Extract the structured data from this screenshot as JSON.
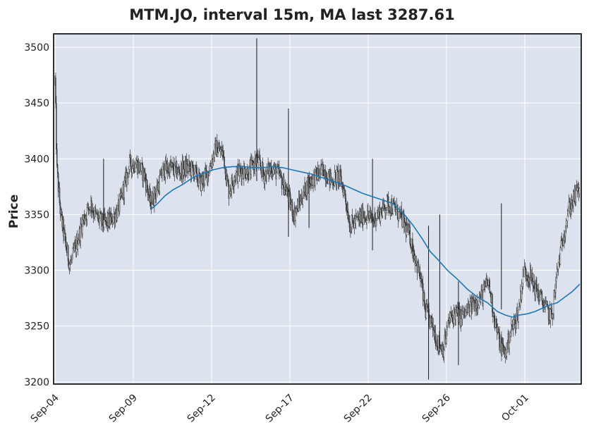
{
  "chart_data": {
    "type": "candlestick",
    "title": "MTM.JO, interval 15m, MA last 3287.61",
    "ylabel": "Price",
    "xlabel": "",
    "ylim": [
      3198,
      3512
    ],
    "y_ticks": [
      3200,
      3250,
      3300,
      3350,
      3400,
      3450,
      3500
    ],
    "x_ticks": [
      {
        "label": "Sep-04",
        "x": 0
      },
      {
        "label": "Sep-09",
        "x": 40
      },
      {
        "label": "Sep-12",
        "x": 80
      },
      {
        "label": "Sep-17",
        "x": 120
      },
      {
        "label": "Sep-22",
        "x": 160
      },
      {
        "label": "Sep-26",
        "x": 200
      },
      {
        "label": "Oct-01",
        "x": 240
      }
    ],
    "x_range": [
      0,
      268
    ],
    "grid": true,
    "colors": {
      "background": "#dce2ee",
      "grid": "#ffffff",
      "candle": "#1a1a1a",
      "ma_line": "#1f77b4"
    },
    "price_keypoints": [
      [
        0,
        3470
      ],
      [
        1,
        3390
      ],
      [
        3,
        3350
      ],
      [
        6,
        3320
      ],
      [
        8,
        3305
      ],
      [
        11,
        3320
      ],
      [
        15,
        3345
      ],
      [
        19,
        3360
      ],
      [
        22,
        3348
      ],
      [
        26,
        3342
      ],
      [
        30,
        3345
      ],
      [
        34,
        3355
      ],
      [
        37,
        3375
      ],
      [
        40,
        3395
      ],
      [
        44,
        3395
      ],
      [
        48,
        3385
      ],
      [
        51,
        3360
      ],
      [
        54,
        3370
      ],
      [
        58,
        3390
      ],
      [
        62,
        3392
      ],
      [
        66,
        3388
      ],
      [
        70,
        3392
      ],
      [
        74,
        3390
      ],
      [
        78,
        3378
      ],
      [
        82,
        3388
      ],
      [
        86,
        3410
      ],
      [
        90,
        3405
      ],
      [
        93,
        3370
      ],
      [
        96,
        3385
      ],
      [
        100,
        3390
      ],
      [
        104,
        3388
      ],
      [
        108,
        3400
      ],
      [
        112,
        3385
      ],
      [
        116,
        3392
      ],
      [
        120,
        3385
      ],
      [
        124,
        3370
      ],
      [
        128,
        3350
      ],
      [
        132,
        3365
      ],
      [
        136,
        3380
      ],
      [
        140,
        3385
      ],
      [
        144,
        3390
      ],
      [
        148,
        3380
      ],
      [
        152,
        3385
      ],
      [
        155,
        3370
      ],
      [
        158,
        3340
      ],
      [
        162,
        3345
      ],
      [
        166,
        3350
      ],
      [
        170,
        3345
      ],
      [
        174,
        3352
      ],
      [
        178,
        3360
      ],
      [
        182,
        3355
      ],
      [
        186,
        3345
      ],
      [
        190,
        3330
      ],
      [
        193,
        3310
      ],
      [
        196,
        3290
      ],
      [
        198,
        3265
      ],
      [
        202,
        3250
      ],
      [
        205,
        3235
      ],
      [
        208,
        3230
      ],
      [
        211,
        3255
      ],
      [
        214,
        3262
      ],
      [
        217,
        3258
      ],
      [
        220,
        3262
      ],
      [
        224,
        3270
      ],
      [
        228,
        3275
      ],
      [
        232,
        3290
      ],
      [
        235,
        3260
      ],
      [
        238,
        3235
      ],
      [
        241,
        3225
      ],
      [
        244,
        3245
      ],
      [
        248,
        3262
      ],
      [
        251,
        3300
      ],
      [
        254,
        3295
      ],
      [
        257,
        3285
      ],
      [
        260,
        3275
      ],
      [
        263,
        3265
      ],
      [
        266,
        3258
      ],
      [
        269,
        3300
      ],
      [
        272,
        3330
      ],
      [
        275,
        3355
      ],
      [
        278,
        3365
      ],
      [
        281,
        3375
      ]
    ],
    "ma_line": [
      [
        51,
        3357
      ],
      [
        52,
        3356
      ],
      [
        54,
        3360
      ],
      [
        57,
        3367
      ],
      [
        60,
        3372
      ],
      [
        64,
        3377
      ],
      [
        68,
        3383
      ],
      [
        72,
        3387
      ],
      [
        76,
        3390
      ],
      [
        80,
        3392
      ],
      [
        84,
        3393
      ],
      [
        88,
        3393
      ],
      [
        92,
        3392
      ],
      [
        96,
        3392
      ],
      [
        100,
        3393
      ],
      [
        104,
        3392
      ],
      [
        108,
        3390
      ],
      [
        112,
        3388
      ],
      [
        116,
        3386
      ],
      [
        120,
        3383
      ],
      [
        124,
        3380
      ],
      [
        128,
        3377
      ],
      [
        132,
        3373
      ],
      [
        136,
        3369
      ],
      [
        140,
        3366
      ],
      [
        144,
        3363
      ],
      [
        148,
        3360
      ],
      [
        152,
        3352
      ],
      [
        156,
        3341
      ],
      [
        160,
        3328
      ],
      [
        163,
        3317
      ],
      [
        166,
        3310
      ],
      [
        170,
        3300
      ],
      [
        174,
        3292
      ],
      [
        178,
        3283
      ],
      [
        182,
        3276
      ],
      [
        186,
        3271
      ],
      [
        190,
        3263
      ],
      [
        193,
        3260
      ],
      [
        196,
        3258
      ],
      [
        199,
        3260
      ],
      [
        202,
        3261
      ],
      [
        205,
        3263
      ],
      [
        208,
        3266
      ],
      [
        211,
        3269
      ],
      [
        214,
        3271
      ],
      [
        217,
        3276
      ],
      [
        220,
        3281
      ],
      [
        223,
        3287.61
      ]
    ],
    "spikes": [
      {
        "x": 26,
        "high": 3400,
        "low": 3345
      },
      {
        "x": 108,
        "high": 3508,
        "low": 3380
      },
      {
        "x": 125,
        "high": 3445,
        "low": 3330
      },
      {
        "x": 136,
        "high": 3385,
        "low": 3338
      },
      {
        "x": 170,
        "high": 3400,
        "low": 3318
      },
      {
        "x": 200,
        "high": 3340,
        "low": 3202
      },
      {
        "x": 206,
        "high": 3350,
        "low": 3230
      },
      {
        "x": 239,
        "high": 3360,
        "low": 3265
      },
      {
        "x": 216,
        "high": 3290,
        "low": 3215
      }
    ]
  }
}
